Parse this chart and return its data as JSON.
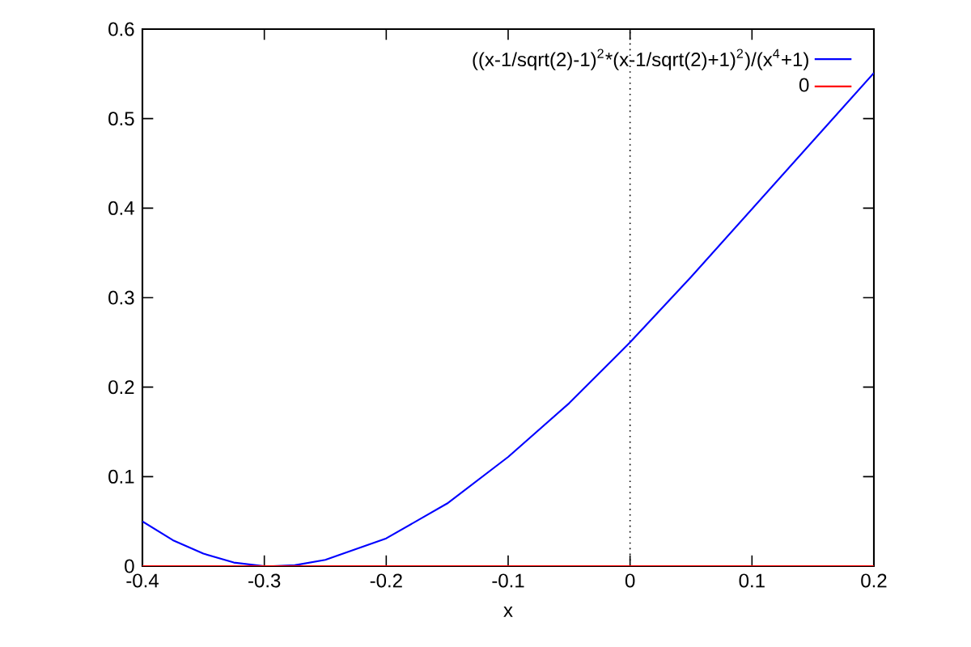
{
  "chart_data": {
    "type": "line",
    "xlabel": "x",
    "x": [
      -0.4,
      -0.375,
      -0.35,
      -0.325,
      -0.3,
      -0.293,
      -0.275,
      -0.25,
      -0.2,
      -0.15,
      -0.1,
      -0.05,
      0,
      0.05,
      0.1,
      0.15,
      0.2
    ],
    "series": [
      {
        "name": "((x-1/sqrt(2)-1)$^{2}$*(x-1/sqrt(2)+1)$^{2}$)/(x$^{4}$+1)",
        "color": "#0000ff",
        "values": [
          0.05,
          0.029,
          0.014,
          0.004,
          0,
          0,
          0.001,
          0.007,
          0.031,
          0.07,
          0.122,
          0.182,
          0.25,
          0.323,
          0.399,
          0.475,
          0.551
        ]
      },
      {
        "name": "0",
        "color": "#ff0000",
        "values": [
          0,
          0,
          0,
          0,
          0,
          0,
          0,
          0,
          0,
          0,
          0,
          0,
          0,
          0,
          0,
          0,
          0
        ]
      }
    ],
    "xlim": [
      -0.4,
      0.2
    ],
    "ylim": [
      0,
      0.6
    ],
    "xticks": [
      -0.4,
      -0.3,
      -0.2,
      -0.1,
      0,
      0.1,
      0.2
    ],
    "yticks": [
      0,
      0.1,
      0.2,
      0.3,
      0.4,
      0.5,
      0.6
    ],
    "ref_lines": [
      {
        "axis": "x",
        "value": 0,
        "line_style": "dotted",
        "color": "#000000"
      }
    ],
    "legend": "top right",
    "grid": false,
    "marker": "none",
    "line_style": "solid"
  }
}
